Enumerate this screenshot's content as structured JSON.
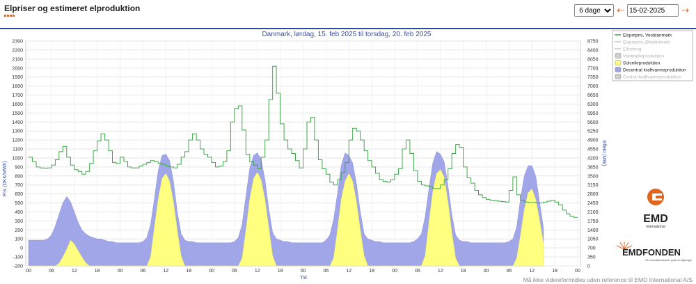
{
  "app": {
    "title": "Elpriser og estimeret elproduktion"
  },
  "controls": {
    "period_options": [
      "6 dage"
    ],
    "period_selected": "6 dage",
    "date_value": "15-02-2025",
    "date_iso": "2025-02-15",
    "prev_icon": "arrow-left-icon",
    "next_icon": "arrow-right-icon",
    "prev_glyph": "⇠",
    "next_glyph": "⇢"
  },
  "colors": {
    "price": "#3fa64a",
    "solar_fill": "#ffff80",
    "decentral_fill": "#a0a6e8",
    "accent": "#e0651f",
    "title": "#3a4fa0",
    "header_line": "#2a4a9a"
  },
  "footer": {
    "disclaimer": "Må ikke videreformidles uden reference til EMD International A/S"
  },
  "logos": {
    "emd": "EMD",
    "emd_sub": "International",
    "fonden": "EMDFONDEN",
    "fonden_tagline": "Et innovationssamt i grønne tilgænger"
  },
  "chart_data": {
    "type": "line",
    "title": "Danmark, lørdag, 15. feb 2025 til torsdag, 20. feb 2025",
    "xlabel": "Tid",
    "ylabel_left": "Pris (DKK/MWh)",
    "ylabel_right": "Effekt (MW)",
    "x_ticks": [
      "00",
      "06",
      "12",
      "18",
      "00",
      "06",
      "12",
      "18",
      "00",
      "06",
      "12",
      "18",
      "00",
      "06",
      "12",
      "18",
      "00",
      "06",
      "12",
      "18",
      "00",
      "06",
      "12",
      "18",
      "00"
    ],
    "y_left_ticks": [
      2300,
      2200,
      2100,
      2000,
      1900,
      1800,
      1700,
      1600,
      1500,
      1400,
      1300,
      1200,
      1100,
      1000,
      900,
      800,
      700,
      600,
      500,
      400,
      300,
      200,
      100,
      0,
      -100,
      -200
    ],
    "y_right_ticks": [
      8750,
      8400,
      8050,
      7700,
      7350,
      7000,
      6650,
      6300,
      5950,
      5600,
      5250,
      4900,
      4550,
      4200,
      3850,
      3500,
      3150,
      2800,
      2450,
      2100,
      1750,
      1400,
      1050,
      700,
      350,
      0
    ],
    "ylim_left": [
      -200,
      2300
    ],
    "ylim_right": [
      0,
      8750
    ],
    "xlim_hours": [
      0,
      144
    ],
    "grid": true,
    "legend_position": "top-right",
    "legend": [
      {
        "name": "Elspotpris, Vestdanmark",
        "active": true,
        "kind": "line",
        "color": "#3fa64a"
      },
      {
        "name": "Elspotpris, Østdanmark",
        "active": false,
        "kind": "line",
        "color": "#c8c8c8"
      },
      {
        "name": "Elforbrug",
        "active": false,
        "kind": "line",
        "color": "#c8c8c8"
      },
      {
        "name": "Vindmølleproduktion",
        "active": false,
        "kind": "box",
        "color": "#cfcfcf"
      },
      {
        "name": "Solcelleproduktion",
        "active": true,
        "kind": "box",
        "color": "#ffff80"
      },
      {
        "name": "Decentral kraftvarmeproduktion",
        "active": true,
        "kind": "box",
        "color": "#a0a6e8"
      },
      {
        "name": "Central kraftvarmeproduktion",
        "active": false,
        "kind": "box",
        "color": "#cfcfcf"
      }
    ],
    "series": [
      {
        "name": "Elspotpris, Vestdanmark",
        "axis": "left",
        "step": true,
        "values": [
          1010,
          960,
          900,
          890,
          885,
          890,
          920,
          980,
          1070,
          1130,
          1010,
          920,
          870,
          850,
          820,
          850,
          940,
          1080,
          1190,
          1270,
          1200,
          1080,
          950,
          940,
          1010,
          960,
          900,
          890,
          890,
          910,
          930,
          950,
          970,
          960,
          940,
          930,
          910,
          900,
          890,
          930,
          1010,
          1070,
          1200,
          1270,
          1200,
          1100,
          1040,
          1010,
          950,
          900,
          910,
          960,
          1080,
          1400,
          1550,
          1580,
          1310,
          1040,
          960,
          920,
          880,
          1010,
          1200,
          1650,
          2020,
          1720,
          1380,
          1200,
          1100,
          1050,
          970,
          890,
          1100,
          1400,
          1450,
          1200,
          980,
          880,
          820,
          730,
          700,
          760,
          840,
          950,
          1200,
          1330,
          1300,
          1200,
          1080,
          970,
          900,
          830,
          760,
          740,
          730,
          760,
          820,
          880,
          1100,
          1200,
          1050,
          860,
          740,
          700,
          690,
          680,
          660,
          660,
          700,
          760,
          880,
          1050,
          1150,
          1120,
          900,
          780,
          720,
          640,
          590,
          560,
          540,
          530,
          525,
          520,
          515,
          510,
          640,
          790,
          590,
          530,
          510,
          505,
          505,
          500,
          500,
          510,
          520,
          530,
          510,
          480,
          420,
          380,
          350,
          340
        ]
      },
      {
        "name": "Solcelleproduktion",
        "axis": "right",
        "values": [
          0,
          0,
          0,
          0,
          0,
          0,
          0,
          0,
          100,
          350,
          650,
          1000,
          850,
          600,
          350,
          120,
          0,
          0,
          0,
          0,
          0,
          0,
          0,
          0,
          0,
          0,
          0,
          0,
          0,
          0,
          0,
          0,
          350,
          1500,
          2600,
          3400,
          3600,
          3300,
          2500,
          1400,
          400,
          0,
          0,
          0,
          0,
          0,
          0,
          0,
          0,
          0,
          0,
          0,
          0,
          0,
          0,
          0,
          300,
          1400,
          2600,
          3400,
          3650,
          3350,
          2600,
          1500,
          400,
          0,
          0,
          0,
          0,
          0,
          0,
          0,
          0,
          0,
          0,
          0,
          0,
          0,
          0,
          0,
          300,
          1400,
          2600,
          3300,
          3600,
          3300,
          2500,
          1400,
          400,
          0,
          0,
          0,
          0,
          0,
          0,
          0,
          0,
          0,
          0,
          0,
          0,
          0,
          0,
          0,
          400,
          1700,
          2900,
          3600,
          3750,
          3450,
          2500,
          1300,
          300,
          0,
          0,
          0,
          0,
          0,
          0,
          0,
          0,
          0,
          0,
          0,
          0,
          0,
          0,
          0,
          300,
          1200,
          2200,
          2850,
          3000,
          2600,
          1800,
          900
        ]
      },
      {
        "name": "Decentral kraftvarmeproduktion",
        "axis": "right",
        "values": [
          1000,
          1000,
          1000,
          1000,
          1000,
          1050,
          1200,
          1550,
          2000,
          2450,
          2700,
          2500,
          2100,
          1700,
          1400,
          1250,
          1150,
          1100,
          1050,
          1050,
          1000,
          950,
          950,
          900,
          900,
          900,
          900,
          900,
          900,
          900,
          950,
          1100,
          1600,
          2600,
          3700,
          4300,
          4350,
          4100,
          3300,
          2100,
          1250,
          1000,
          950,
          950,
          900,
          900,
          900,
          900,
          900,
          900,
          900,
          900,
          900,
          900,
          950,
          1100,
          1600,
          2700,
          3800,
          4300,
          4400,
          4150,
          3350,
          2200,
          1300,
          1050,
          1000,
          950,
          950,
          900,
          900,
          900,
          900,
          900,
          900,
          900,
          900,
          900,
          1000,
          1200,
          1800,
          2800,
          3900,
          4400,
          4300,
          4000,
          3200,
          2100,
          1250,
          1050,
          1000,
          950,
          950,
          900,
          900,
          900,
          900,
          900,
          900,
          900,
          900,
          950,
          1050,
          1250,
          1900,
          3000,
          4000,
          4450,
          4350,
          4050,
          3100,
          2000,
          1200,
          1000,
          950,
          950,
          900,
          900,
          900,
          900,
          900,
          900,
          900,
          900,
          900,
          900,
          950,
          1050,
          1500,
          2600,
          3500,
          3900,
          3900,
          3500,
          2500,
          1500
        ]
      }
    ]
  }
}
